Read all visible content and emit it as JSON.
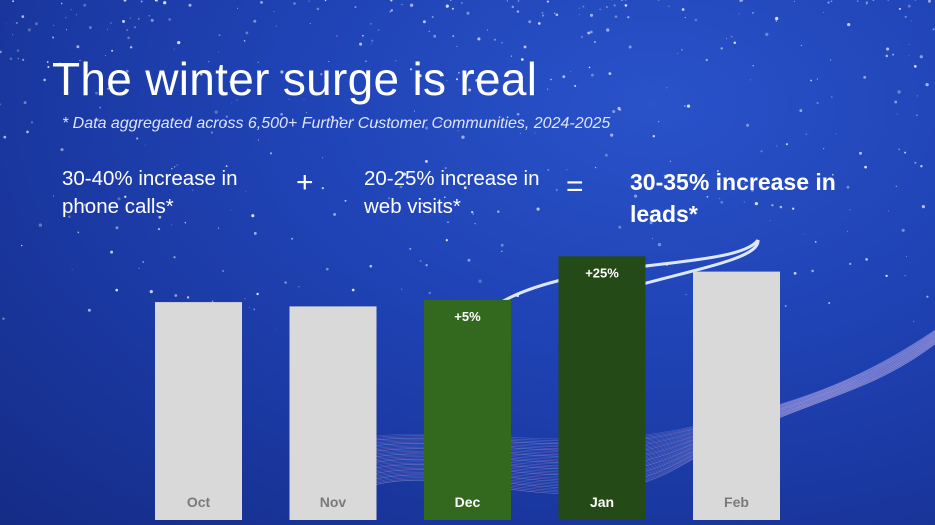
{
  "slide": {
    "title": "The winter surge is real",
    "footnote": "* Data aggregated across 6,500+ Further Customer Communities, 2024-2025",
    "stat_calls": "30-40% increase in phone calls*",
    "op_plus": "+",
    "stat_web": "20-25% increase in web visits*",
    "op_equals": "=",
    "stat_leads": "30-35% increase in leads*"
  },
  "chart_data": {
    "type": "bar",
    "categories": [
      "Oct",
      "Nov",
      "Dec",
      "Jan",
      "Feb"
    ],
    "values": [
      100,
      98,
      101,
      121,
      114
    ],
    "value_labels": [
      "",
      "",
      "+5%",
      "+25%",
      ""
    ],
    "ylim": [
      0,
      134
    ],
    "grid": false,
    "legend": "none",
    "colors": [
      "#d9d9d9",
      "#d9d9d9",
      "#33691e",
      "#244a17",
      "#d9d9d9"
    ],
    "label_colors": [
      "#7a7a7a",
      "#7a7a7a",
      "#ffffff",
      "#ffffff",
      "#7a7a7a"
    ]
  },
  "colors": {
    "background": "#1f43b5",
    "arrow": "#dde7ff"
  }
}
